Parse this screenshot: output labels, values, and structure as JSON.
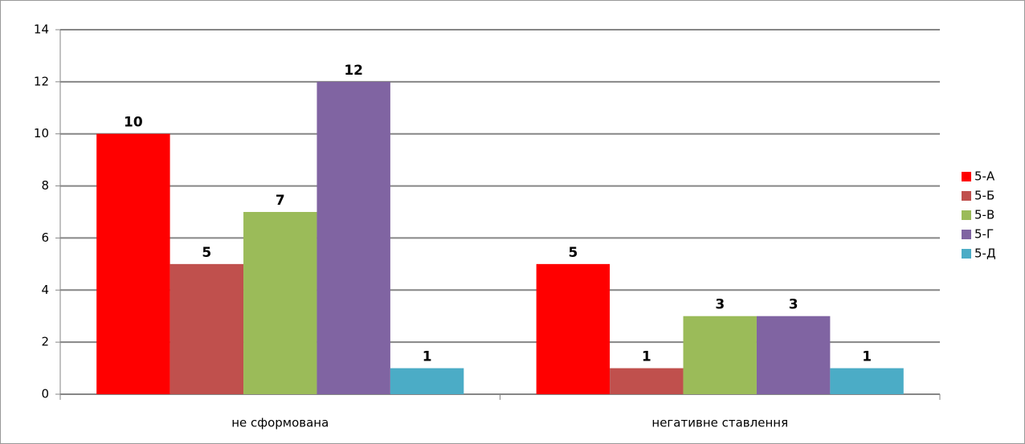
{
  "chart_data": {
    "type": "bar",
    "categories": [
      "не сформована",
      "негативне ставлення"
    ],
    "series": [
      {
        "name": "5-А",
        "color": "#ff0000",
        "values": [
          10,
          5
        ]
      },
      {
        "name": "5-Б",
        "color": "#c0504d",
        "values": [
          5,
          1
        ]
      },
      {
        "name": "5-В",
        "color": "#9bbb59",
        "values": [
          7,
          3
        ]
      },
      {
        "name": "5-Г",
        "color": "#8064a2",
        "values": [
          12,
          3
        ]
      },
      {
        "name": "5-Д",
        "color": "#4bacc6",
        "values": [
          1,
          1
        ]
      }
    ],
    "ylim": [
      0,
      14
    ],
    "yticks": [
      0,
      2,
      4,
      6,
      8,
      10,
      12,
      14
    ],
    "grid": true,
    "legend": "right"
  }
}
